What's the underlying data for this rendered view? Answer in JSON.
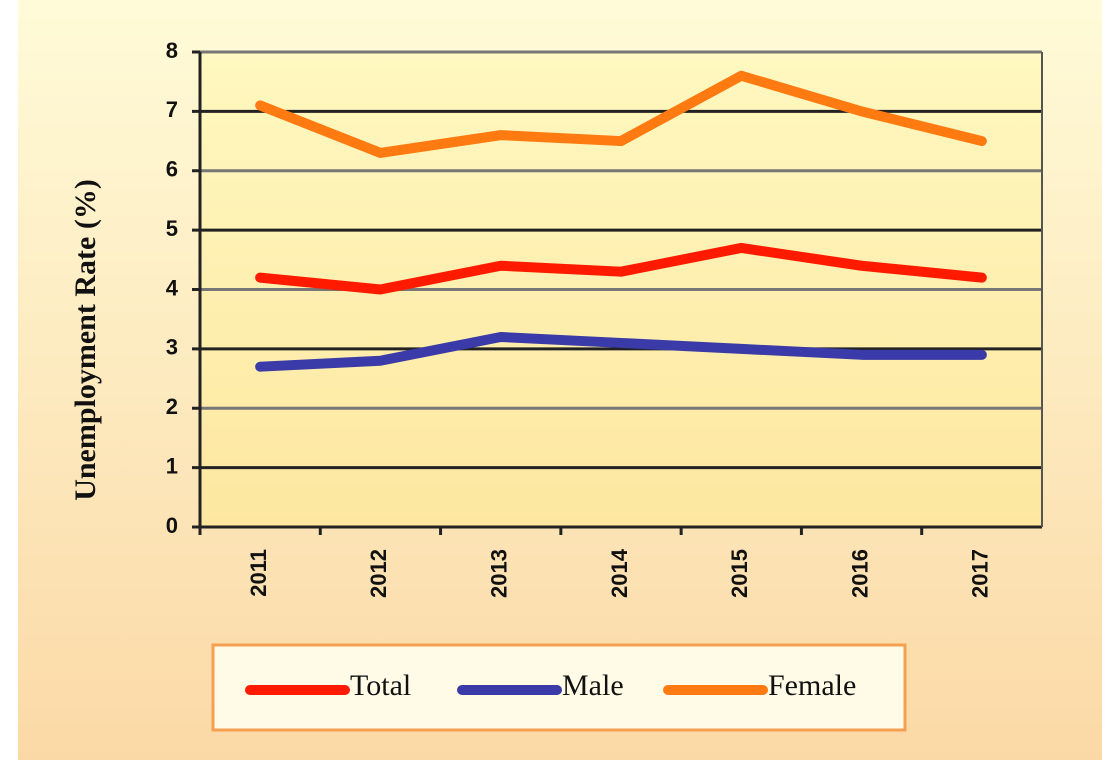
{
  "chart_data": {
    "type": "line",
    "y_label": "Unemployment Rate (%)",
    "categories": [
      "2011",
      "2012",
      "2013",
      "2014",
      "2015",
      "2016",
      "2017"
    ],
    "series": [
      {
        "name": "Total",
        "color": "#ff1a00",
        "values": [
          4.2,
          4.0,
          4.4,
          4.3,
          4.7,
          4.4,
          4.2
        ]
      },
      {
        "name": "Male",
        "color": "#3a3aa8",
        "values": [
          2.7,
          2.8,
          3.2,
          3.1,
          3.0,
          2.9,
          2.9
        ]
      },
      {
        "name": "Female",
        "color": "#ff7a10",
        "values": [
          7.1,
          6.3,
          6.6,
          6.5,
          7.6,
          7.0,
          6.5
        ]
      }
    ],
    "ylim": [
      0,
      8
    ],
    "yticks": [
      0,
      1,
      2,
      3,
      4,
      5,
      6,
      7,
      8
    ],
    "grid": true,
    "legend": "bottom"
  }
}
